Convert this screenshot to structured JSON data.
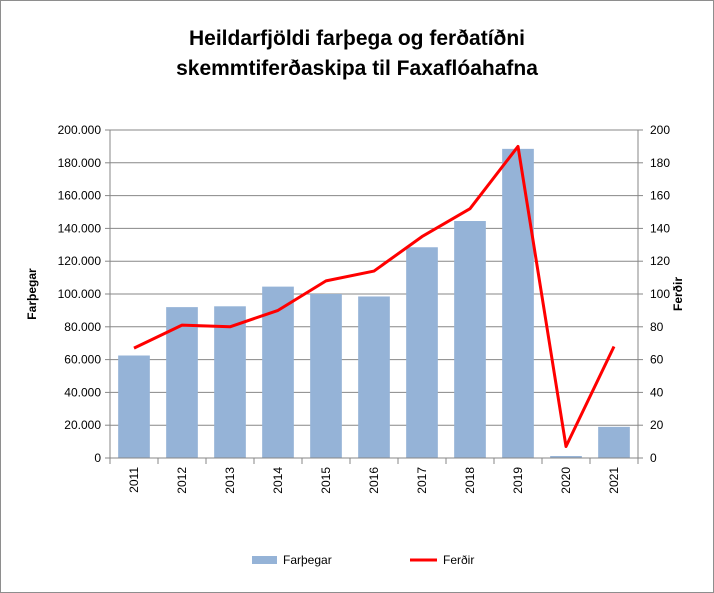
{
  "chart_data": {
    "type": "bar",
    "title_line1": "Heildarfjöldi farþega og ferðatíðni",
    "title_line2": "skemmtiferðaskipa til Faxaflóahafna",
    "categories": [
      "2011",
      "2012",
      "2013",
      "2014",
      "2015",
      "2016",
      "2017",
      "2018",
      "2019",
      "2020",
      "2021"
    ],
    "series": [
      {
        "name": "Farþegar",
        "type": "bar",
        "axis": "left",
        "color": "#95b3d7",
        "values": [
          62500,
          92000,
          92500,
          104500,
          100000,
          98500,
          128500,
          144500,
          188500,
          1200,
          19000
        ]
      },
      {
        "name": "Ferðir",
        "type": "line",
        "axis": "right",
        "color": "#ff0000",
        "values": [
          67,
          81,
          80,
          90,
          108,
          114,
          135,
          152,
          190,
          7,
          68
        ]
      }
    ],
    "ylabel_left": "Farþegar",
    "ylabel_right": "Ferðir",
    "ylim_left": [
      0,
      200000
    ],
    "ylim_right": [
      0,
      200
    ],
    "left_ticks": [
      "0",
      "20.000",
      "40.000",
      "60.000",
      "80.000",
      "100.000",
      "120.000",
      "140.000",
      "160.000",
      "180.000",
      "200.000"
    ],
    "right_ticks": [
      "0",
      "20",
      "40",
      "60",
      "80",
      "100",
      "120",
      "140",
      "160",
      "180",
      "200"
    ],
    "grid": true,
    "legend_position": "bottom"
  }
}
